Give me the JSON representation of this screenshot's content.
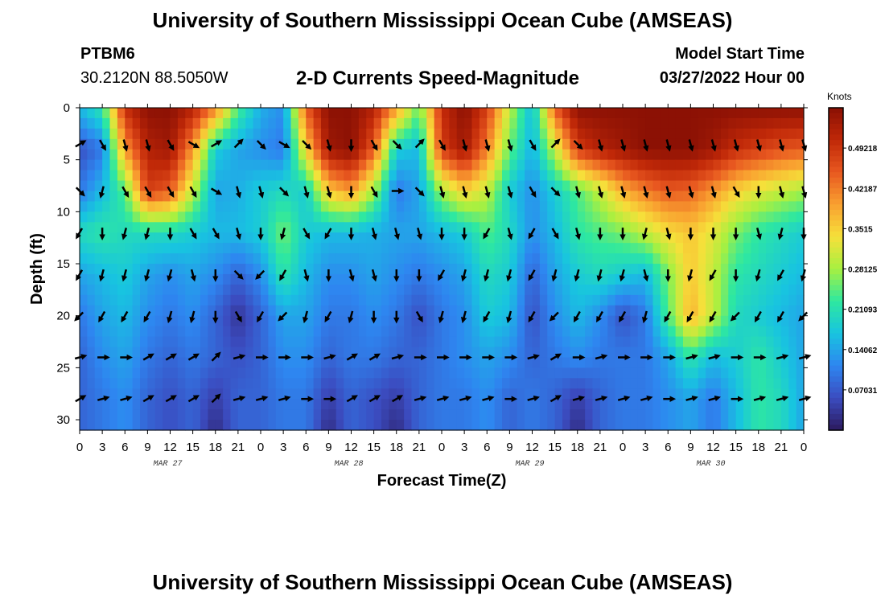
{
  "header": {
    "title": "University of Southern Mississippi Ocean Cube (AMSEAS)",
    "station_id": "PTBM6",
    "coords": "30.2120N  88.5050W",
    "plot_title": "2-D Currents Speed-Magnitude",
    "model_start_label": "Model Start Time",
    "model_start_value": "03/27/2022 Hour 00"
  },
  "footer": {
    "title": "University of Southern Mississippi Ocean Cube (AMSEAS)"
  },
  "chart_data": {
    "type": "heatmap",
    "title": "2-D Currents Speed-Magnitude",
    "xlabel": "Forecast Time(Z)",
    "ylabel": "Depth (ft)",
    "x_tick_labels": [
      "0",
      "3",
      "6",
      "9",
      "12",
      "15",
      "18",
      "21",
      "0",
      "3",
      "6",
      "9",
      "12",
      "15",
      "18",
      "21",
      "0",
      "3",
      "6",
      "9",
      "12",
      "15",
      "18",
      "21",
      "0",
      "3",
      "6",
      "9",
      "12",
      "15",
      "18",
      "21",
      "0"
    ],
    "date_labels": [
      {
        "label": "MAR 27",
        "hour": 12
      },
      {
        "label": "MAR 28",
        "hour": 36
      },
      {
        "label": "MAR 29",
        "hour": 60
      },
      {
        "label": "MAR 30",
        "hour": 84
      }
    ],
    "x_range_hours": [
      0,
      96
    ],
    "y_ticks": [
      0,
      5,
      10,
      15,
      20,
      25,
      30
    ],
    "ylim_ft": [
      0,
      31
    ],
    "colorbar": {
      "units": "Knots",
      "range": [
        0,
        0.5625
      ],
      "tick_values": [
        0.07031,
        0.14062,
        0.21093,
        0.28125,
        0.3515,
        0.42187,
        0.49218
      ],
      "tick_labels": [
        "0.07031",
        "0.14062",
        "0.21093",
        "0.28125",
        "0.3515",
        "0.42187",
        "0.49218"
      ],
      "colors": [
        "#2c1a5e",
        "#3b4cc0",
        "#2e86f0",
        "#18c4e0",
        "#2ee8a0",
        "#a8f040",
        "#f6e03a",
        "#f9a030",
        "#e85820",
        "#c02808",
        "#8a1004"
      ]
    },
    "speed_knots_rows": {
      "depths_ft": [
        0,
        4,
        8,
        12,
        16,
        20,
        24,
        28,
        31
      ],
      "hours": [
        0,
        3,
        6,
        9,
        12,
        15,
        18,
        21,
        24,
        27,
        30,
        33,
        36,
        39,
        42,
        45,
        48,
        51,
        54,
        57,
        60,
        63,
        66,
        69,
        72,
        75,
        78,
        81,
        84,
        87,
        90,
        93,
        96
      ],
      "values": [
        [
          0.16,
          0.22,
          0.5,
          0.56,
          0.56,
          0.52,
          0.42,
          0.24,
          0.15,
          0.12,
          0.45,
          0.56,
          0.56,
          0.52,
          0.4,
          0.25,
          0.5,
          0.56,
          0.48,
          0.3,
          0.16,
          0.45,
          0.56,
          0.56,
          0.56,
          0.56,
          0.56,
          0.56,
          0.56,
          0.56,
          0.56,
          0.56,
          0.56
        ],
        [
          0.06,
          0.1,
          0.4,
          0.52,
          0.54,
          0.4,
          0.18,
          0.14,
          0.12,
          0.1,
          0.35,
          0.54,
          0.56,
          0.45,
          0.18,
          0.16,
          0.48,
          0.54,
          0.42,
          0.25,
          0.15,
          0.3,
          0.48,
          0.52,
          0.54,
          0.56,
          0.56,
          0.56,
          0.54,
          0.5,
          0.48,
          0.46,
          0.45
        ],
        [
          0.1,
          0.16,
          0.24,
          0.48,
          0.45,
          0.3,
          0.14,
          0.15,
          0.18,
          0.2,
          0.18,
          0.36,
          0.4,
          0.28,
          0.1,
          0.14,
          0.28,
          0.35,
          0.3,
          0.18,
          0.12,
          0.18,
          0.24,
          0.3,
          0.38,
          0.42,
          0.45,
          0.44,
          0.4,
          0.35,
          0.32,
          0.3,
          0.28
        ],
        [
          0.2,
          0.22,
          0.2,
          0.2,
          0.2,
          0.18,
          0.16,
          0.16,
          0.18,
          0.26,
          0.18,
          0.16,
          0.16,
          0.15,
          0.14,
          0.14,
          0.16,
          0.18,
          0.24,
          0.2,
          0.12,
          0.16,
          0.22,
          0.24,
          0.26,
          0.3,
          0.34,
          0.36,
          0.32,
          0.26,
          0.22,
          0.2,
          0.18
        ],
        [
          0.14,
          0.16,
          0.18,
          0.14,
          0.12,
          0.14,
          0.12,
          0.08,
          0.12,
          0.22,
          0.16,
          0.12,
          0.12,
          0.14,
          0.12,
          0.1,
          0.12,
          0.14,
          0.2,
          0.18,
          0.08,
          0.14,
          0.18,
          0.2,
          0.18,
          0.16,
          0.26,
          0.36,
          0.3,
          0.22,
          0.2,
          0.18,
          0.16
        ],
        [
          0.1,
          0.14,
          0.16,
          0.12,
          0.1,
          0.12,
          0.08,
          0.03,
          0.08,
          0.14,
          0.14,
          0.1,
          0.1,
          0.12,
          0.1,
          0.06,
          0.1,
          0.12,
          0.18,
          0.16,
          0.06,
          0.12,
          0.16,
          0.12,
          0.06,
          0.1,
          0.24,
          0.38,
          0.3,
          0.2,
          0.18,
          0.16,
          0.14
        ],
        [
          0.08,
          0.12,
          0.14,
          0.1,
          0.08,
          0.1,
          0.08,
          0.06,
          0.08,
          0.12,
          0.12,
          0.08,
          0.1,
          0.1,
          0.08,
          0.08,
          0.1,
          0.12,
          0.14,
          0.12,
          0.08,
          0.1,
          0.12,
          0.1,
          0.1,
          0.1,
          0.14,
          0.22,
          0.16,
          0.18,
          0.22,
          0.18,
          0.14
        ],
        [
          0.08,
          0.1,
          0.12,
          0.08,
          0.06,
          0.08,
          0.04,
          0.08,
          0.08,
          0.1,
          0.1,
          0.04,
          0.08,
          0.06,
          0.04,
          0.08,
          0.1,
          0.1,
          0.12,
          0.08,
          0.1,
          0.08,
          0.04,
          0.08,
          0.1,
          0.1,
          0.12,
          0.14,
          0.1,
          0.16,
          0.22,
          0.2,
          0.14
        ],
        [
          0.08,
          0.1,
          0.12,
          0.08,
          0.06,
          0.08,
          0.02,
          0.08,
          0.08,
          0.1,
          0.1,
          0.02,
          0.08,
          0.06,
          0.02,
          0.08,
          0.1,
          0.1,
          0.12,
          0.08,
          0.1,
          0.08,
          0.02,
          0.08,
          0.1,
          0.1,
          0.12,
          0.14,
          0.1,
          0.16,
          0.22,
          0.2,
          0.14
        ]
      ]
    },
    "vector_arrows": {
      "depths_ft": [
        3.5,
        8,
        12,
        16,
        20,
        24,
        28
      ],
      "hours": [
        0,
        3,
        6,
        9,
        12,
        15,
        18,
        21,
        24,
        27,
        30,
        33,
        36,
        39,
        42,
        45,
        48,
        51,
        54,
        57,
        60,
        63,
        66,
        69,
        72,
        75,
        78,
        81,
        84,
        87,
        90,
        93,
        96
      ],
      "directions_deg": [
        [
          60,
          150,
          165,
          165,
          150,
          120,
          60,
          45,
          135,
          120,
          135,
          165,
          180,
          150,
          135,
          45,
          150,
          165,
          165,
          165,
          150,
          45,
          135,
          165,
          165,
          165,
          165,
          165,
          165,
          165,
          165,
          165,
          165
        ],
        [
          135,
          195,
          150,
          150,
          150,
          150,
          120,
          165,
          165,
          135,
          165,
          165,
          180,
          150,
          90,
          135,
          165,
          165,
          165,
          165,
          150,
          135,
          165,
          165,
          165,
          165,
          165,
          165,
          165,
          150,
          180,
          165,
          165
        ],
        [
          210,
          180,
          195,
          195,
          180,
          150,
          150,
          165,
          180,
          195,
          150,
          210,
          180,
          165,
          165,
          165,
          180,
          180,
          210,
          165,
          210,
          150,
          165,
          180,
          180,
          195,
          165,
          180,
          180,
          180,
          165,
          195,
          180
        ],
        [
          210,
          195,
          195,
          195,
          195,
          165,
          180,
          135,
          225,
          210,
          165,
          180,
          165,
          165,
          180,
          180,
          210,
          195,
          195,
          195,
          210,
          195,
          195,
          195,
          195,
          165,
          180,
          195,
          210,
          180,
          195,
          210,
          195
        ],
        [
          225,
          210,
          210,
          210,
          195,
          195,
          180,
          150,
          210,
          225,
          195,
          210,
          195,
          180,
          180,
          150,
          195,
          195,
          210,
          195,
          210,
          225,
          210,
          210,
          210,
          195,
          210,
          210,
          210,
          225,
          210,
          210,
          225
        ],
        [
          75,
          90,
          90,
          60,
          60,
          60,
          45,
          75,
          90,
          90,
          90,
          75,
          60,
          60,
          75,
          90,
          90,
          90,
          90,
          90,
          75,
          60,
          90,
          75,
          90,
          90,
          90,
          75,
          75,
          90,
          90,
          75,
          75
        ],
        [
          60,
          75,
          75,
          60,
          60,
          60,
          45,
          75,
          75,
          75,
          90,
          90,
          60,
          60,
          60,
          75,
          75,
          75,
          75,
          90,
          75,
          60,
          75,
          75,
          75,
          75,
          90,
          75,
          75,
          90,
          75,
          75,
          75
        ]
      ]
    },
    "legend": "colorbar-right"
  }
}
